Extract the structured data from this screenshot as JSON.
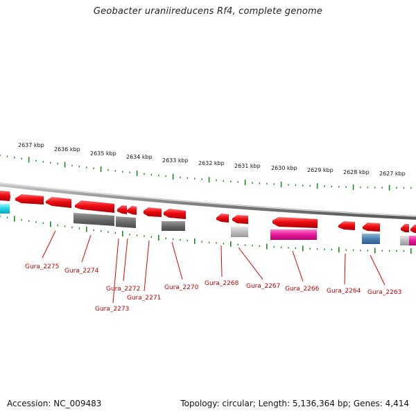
{
  "title": "Geobacter uraniireducens Rf4, complete genome",
  "accession_text": "Accession: NC_009483",
  "topology_text": "Topology: circular; Length: 5,136,364 bp; Genes: 4,414",
  "scale": {
    "unit": "kbp",
    "labels": [
      "2637 kbp",
      "2636 kbp",
      "2635 kbp",
      "2634 kbp",
      "2633 kbp",
      "2632 kbp",
      "2631 kbp",
      "2630 kbp",
      "2629 kbp",
      "2628 kbp",
      "2627 kbp"
    ]
  },
  "gene_labels": [
    "Gura_2275",
    "Gura_2274",
    "Gura_2273",
    "Gura_2272",
    "Gura_2271",
    "Gura_2270",
    "Gura_2268",
    "Gura_2267",
    "Gura_2266",
    "Gura_2264",
    "Gura_2263"
  ],
  "colors": {
    "gene_red": "#e8000d",
    "backbone": "#8a8a8a",
    "tick_green": "#1a8a1a",
    "label_red": "#c80000",
    "label_line": "#e00000",
    "dark_gray": "#6a6a6a",
    "light_gray": "#bdbdbd",
    "magenta": "#e8179a",
    "steel_blue": "#4a7fb0",
    "cyan": "#1fd4e6"
  }
}
